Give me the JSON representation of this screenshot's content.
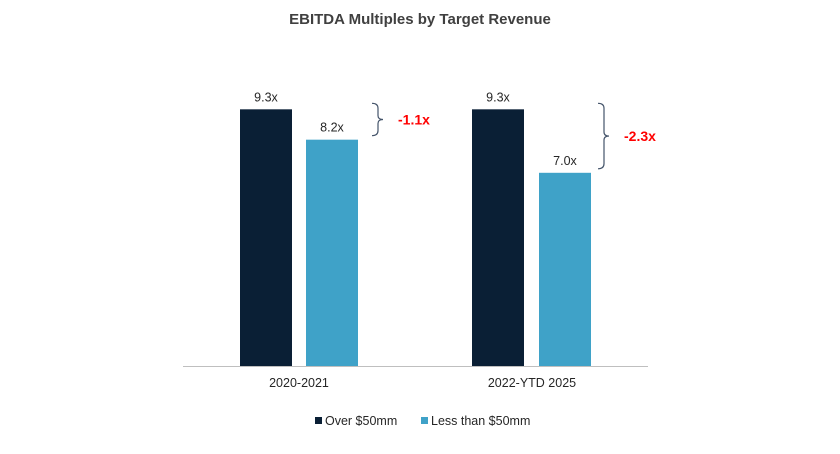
{
  "chart_data": {
    "type": "bar",
    "title": "EBITDA Multiples by Target Revenue",
    "xlabel": "",
    "ylabel": "",
    "ylim": [
      0,
      10
    ],
    "grid": false,
    "legend_position": "bottom",
    "categories": [
      "2020-2021",
      "2022-YTD 2025"
    ],
    "series": [
      {
        "name": "Over $50mm",
        "color": "#0a1f35",
        "values": [
          9.3,
          9.3
        ],
        "labels": [
          "9.3x",
          "9.3x"
        ]
      },
      {
        "name": "Less than $50mm",
        "color": "#3fa2c8",
        "values": [
          8.2,
          7.0
        ],
        "labels": [
          "8.2x",
          "7.0x"
        ]
      }
    ],
    "annotations": [
      {
        "category": "2020-2021",
        "text": "-1.1x",
        "color": "#ff0000"
      },
      {
        "category": "2022-YTD 2025",
        "text": "-2.3x",
        "color": "#ff0000"
      }
    ]
  }
}
